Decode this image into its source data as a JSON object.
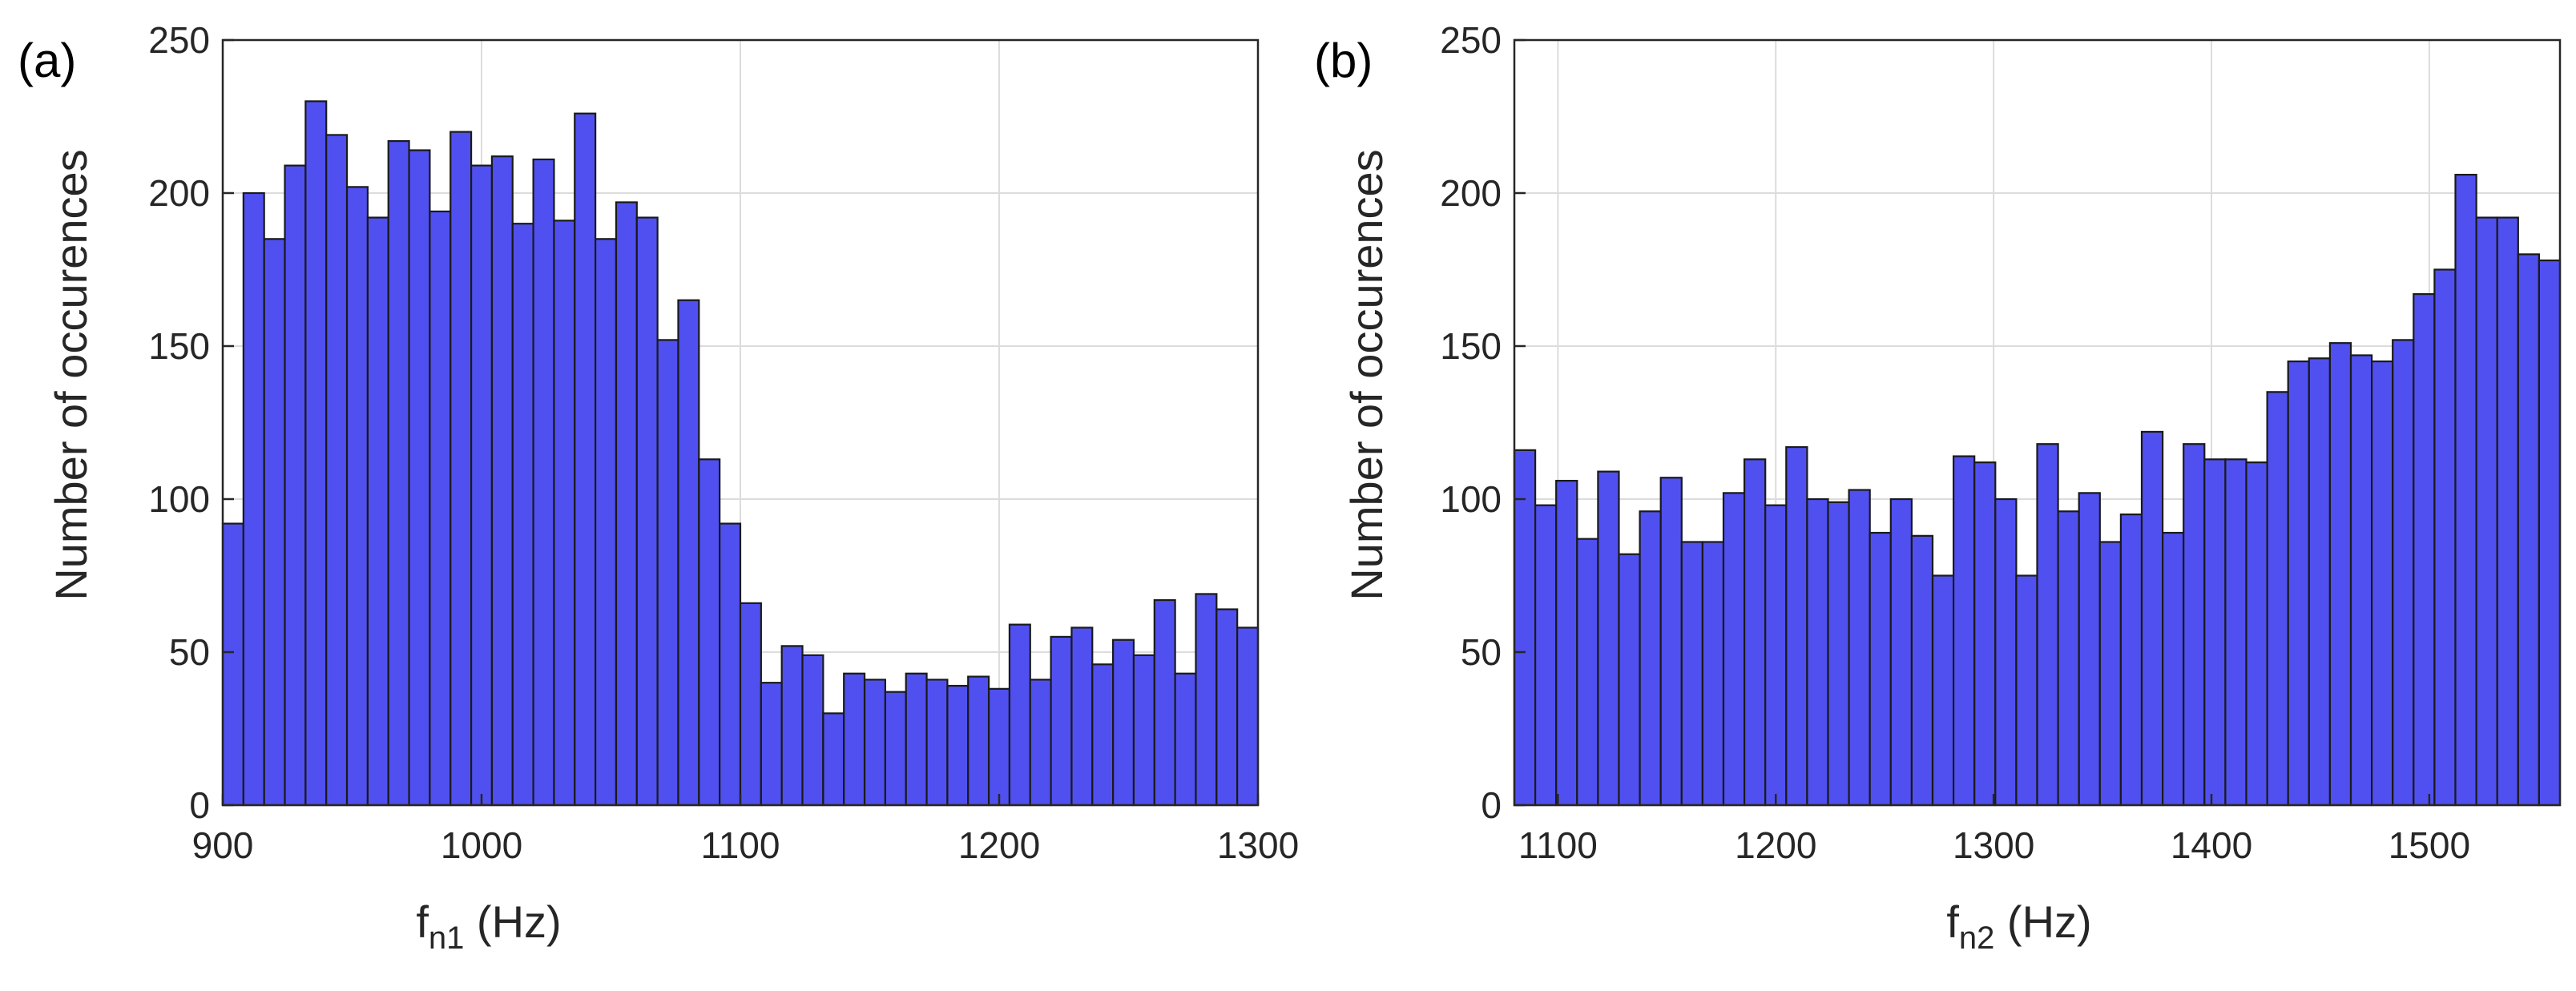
{
  "chart_data": [
    {
      "type": "bar",
      "panel_label": "(a)",
      "ylabel": "Number of occurences",
      "xlabel_main": "f",
      "xlabel_sub": "n1",
      "xlabel_unit": " (Hz)",
      "xlim": [
        900,
        1300
      ],
      "ylim": [
        0,
        250
      ],
      "xticks": [
        900,
        1000,
        1100,
        1200,
        1300
      ],
      "yticks": [
        0,
        50,
        100,
        150,
        200,
        250
      ],
      "grid": true,
      "bin_start": 900,
      "bin_width": 8,
      "values": [
        92,
        200,
        185,
        209,
        230,
        219,
        202,
        192,
        217,
        214,
        194,
        220,
        209,
        212,
        190,
        211,
        191,
        226,
        185,
        197,
        192,
        152,
        165,
        113,
        92,
        66,
        40,
        52,
        49,
        30,
        43,
        41,
        37,
        43,
        41,
        39,
        42,
        38,
        59,
        41,
        55,
        58,
        46,
        54,
        49,
        67,
        43,
        69,
        64,
        58
      ]
    },
    {
      "type": "bar",
      "panel_label": "(b)",
      "ylabel": "Number of occurences",
      "xlabel_main": "f",
      "xlabel_sub": "n2",
      "xlabel_unit": " (Hz)",
      "xlim": [
        1080,
        1560
      ],
      "ylim": [
        0,
        250
      ],
      "xticks": [
        1100,
        1200,
        1300,
        1400,
        1500
      ],
      "yticks": [
        0,
        50,
        100,
        150,
        200,
        250
      ],
      "grid": true,
      "bin_start": 1080,
      "bin_width": 9.6,
      "values": [
        116,
        98,
        106,
        87,
        109,
        82,
        96,
        107,
        86,
        86,
        102,
        113,
        98,
        117,
        100,
        99,
        103,
        89,
        100,
        88,
        75,
        114,
        112,
        100,
        75,
        118,
        96,
        102,
        86,
        95,
        122,
        89,
        118,
        113,
        113,
        112,
        135,
        145,
        146,
        151,
        147,
        145,
        152,
        167,
        175,
        206,
        192,
        192,
        180,
        178
      ]
    }
  ],
  "colors": {
    "bar_fill": "#5050f0",
    "bar_stroke": "#1a1a1a",
    "grid": "#dcdcdc",
    "axis": "#262626"
  }
}
